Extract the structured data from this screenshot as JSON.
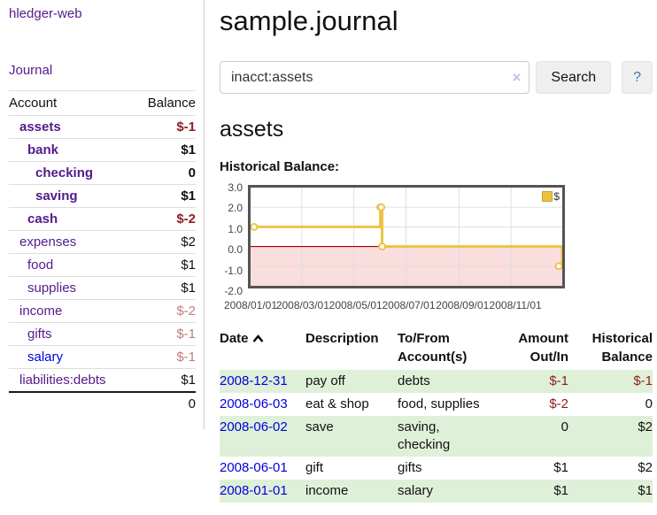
{
  "app": {
    "brand": "hledger-web",
    "journal_link": "Journal"
  },
  "sidebar": {
    "header": {
      "account": "Account",
      "balance": "Balance"
    },
    "accounts": [
      {
        "name": "assets",
        "balance": "$-1",
        "indent": 1,
        "bold": true,
        "balance_color": "negative-strong",
        "balance_bold": true,
        "link_color": "purple"
      },
      {
        "name": "bank",
        "balance": "$1",
        "indent": 2,
        "bold": true,
        "balance_color": "normal",
        "balance_bold": true,
        "link_color": "purple"
      },
      {
        "name": "checking",
        "balance": "0",
        "indent": 3,
        "bold": true,
        "balance_color": "normal",
        "balance_bold": true,
        "link_color": "purple"
      },
      {
        "name": "saving",
        "balance": "$1",
        "indent": 3,
        "bold": true,
        "balance_color": "normal",
        "balance_bold": true,
        "link_color": "purple"
      },
      {
        "name": "cash",
        "balance": "$-2",
        "indent": 2,
        "bold": true,
        "balance_color": "negative-strong",
        "balance_bold": true,
        "link_color": "purple"
      },
      {
        "name": "expenses",
        "balance": "$2",
        "indent": 1,
        "bold": false,
        "balance_color": "normal",
        "balance_bold": false,
        "link_color": "purple"
      },
      {
        "name": "food",
        "balance": "$1",
        "indent": 2,
        "bold": false,
        "balance_color": "normal",
        "balance_bold": false,
        "link_color": "purple"
      },
      {
        "name": "supplies",
        "balance": "$1",
        "indent": 2,
        "bold": false,
        "balance_color": "normal",
        "balance_bold": false,
        "link_color": "purple"
      },
      {
        "name": "income",
        "balance": "$-2",
        "indent": 1,
        "bold": false,
        "balance_color": "negative-soft",
        "balance_bold": false,
        "link_color": "purple"
      },
      {
        "name": "gifts",
        "balance": "$-1",
        "indent": 2,
        "bold": false,
        "balance_color": "negative-soft",
        "balance_bold": false,
        "link_color": "purple"
      },
      {
        "name": "salary",
        "balance": "$-1",
        "indent": 2,
        "bold": false,
        "balance_color": "negative-soft",
        "balance_bold": false,
        "link_color": "blue"
      },
      {
        "name": "liabilities:debts",
        "balance": "$1",
        "indent": 1,
        "bold": false,
        "balance_color": "normal",
        "balance_bold": false,
        "link_color": "purple"
      }
    ],
    "total": "0"
  },
  "header": {
    "title": "sample.journal"
  },
  "search": {
    "value": "inacct:assets",
    "clear_icon": "×",
    "button_label": "Search",
    "help_label": "?"
  },
  "account_view": {
    "title": "assets",
    "section_label": "Historical Balance:"
  },
  "chart_data": {
    "type": "line",
    "line_style": "step",
    "title": "Historical Balance",
    "legend": "$",
    "legend_position": "top-right",
    "grid": true,
    "ylim": [
      -2,
      3
    ],
    "xlim": [
      "2008-01-01",
      "2008-12-31"
    ],
    "yticks": [
      "3.0",
      "2.0",
      "1.0",
      "0.0",
      "-1.0",
      "-2.0"
    ],
    "xticks": [
      "2008/01/01",
      "2008/03/01",
      "2008/05/01",
      "2008/07/01",
      "2008/09/01",
      "2008/11/01"
    ],
    "series": [
      {
        "name": "$",
        "color": "#edc240",
        "points": [
          [
            "2008-01-01",
            1
          ],
          [
            "2008-06-01",
            2
          ],
          [
            "2008-06-02",
            2
          ],
          [
            "2008-06-03",
            0
          ],
          [
            "2008-12-31",
            -1
          ]
        ]
      }
    ],
    "negative_region_fill": "#fadddd",
    "zero_line_color": "#a40000",
    "grid_color": "#dedede"
  },
  "register": {
    "columns": [
      "Date",
      "Description",
      "To/From Account(s)",
      "Amount Out/In",
      "Historical Balance"
    ],
    "sort": "ascending",
    "rows": [
      {
        "date": "2008-12-31",
        "description": "pay off",
        "accounts": "debts",
        "amount": "$-1",
        "balance": "$-1",
        "shaded": true
      },
      {
        "date": "2008-06-03",
        "description": "eat & shop",
        "accounts": "food, supplies",
        "amount": "$-2",
        "balance": "0",
        "shaded": false
      },
      {
        "date": "2008-06-02",
        "description": "save",
        "accounts": "saving, checking",
        "amount": "0",
        "balance": "$2",
        "shaded": true
      },
      {
        "date": "2008-06-01",
        "description": "gift",
        "accounts": "gifts",
        "amount": "$1",
        "balance": "$2",
        "shaded": false
      },
      {
        "date": "2008-01-01",
        "description": "income",
        "accounts": "salary",
        "amount": "$1",
        "balance": "$1",
        "shaded": true
      }
    ]
  },
  "colors": {
    "link_purple": "#551a8b",
    "link_blue": "#0000e0",
    "negative_strong": "#8f1d1d",
    "negative_soft": "#bd7e7e",
    "row_stripe_green": "#dff0d8",
    "chart_line": "#edc240"
  }
}
